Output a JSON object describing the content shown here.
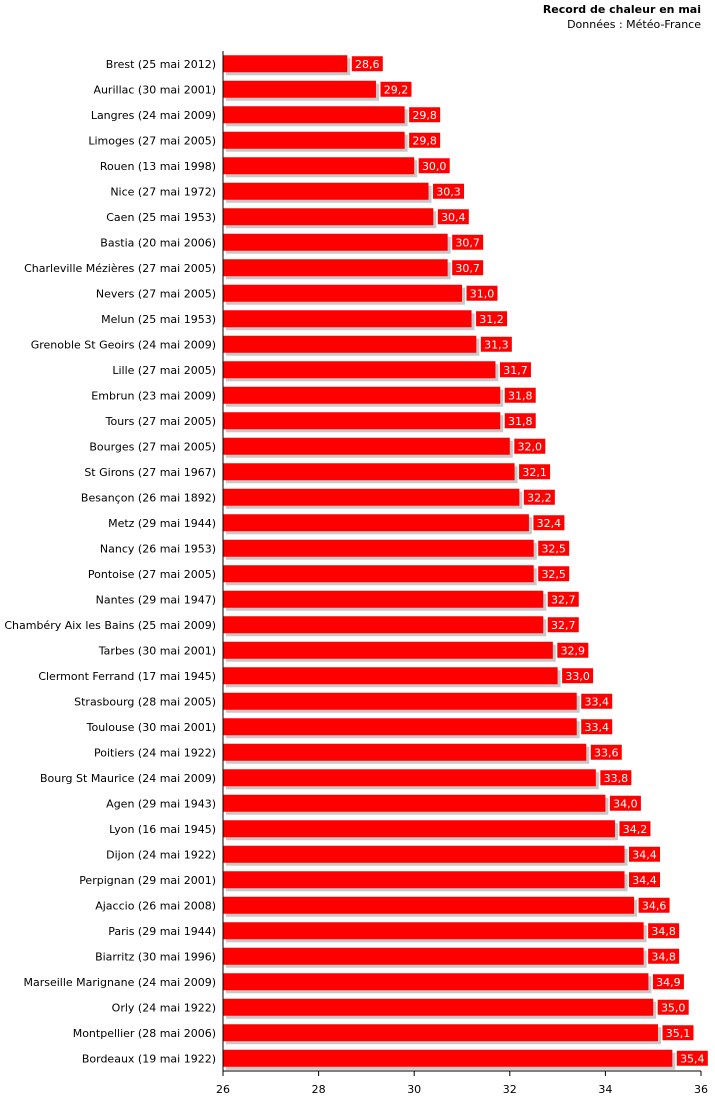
{
  "chart_data": {
    "type": "bar",
    "orientation": "horizontal",
    "title": "Record de chaleur en mai",
    "subtitle": "Données : Météo-France",
    "categories": [
      "Brest (25 mai 2012)",
      "Aurillac (30 mai 2001)",
      "Langres (24 mai 2009)",
      "Limoges (27 mai 2005)",
      "Rouen (13 mai 1998)",
      "Nice (27 mai 1972)",
      "Caen (25 mai 1953)",
      "Bastia (20 mai 2006)",
      "Charleville Mézières (27 mai 2005)",
      "Nevers (27 mai 2005)",
      "Melun (25 mai 1953)",
      "Grenoble St Geoirs (24 mai 2009)",
      "Lille (27 mai 2005)",
      "Embrun (23 mai 2009)",
      "Tours (27 mai 2005)",
      "Bourges (27 mai 2005)",
      "St Girons (27 mai 1967)",
      "Besançon (26 mai 1892)",
      "Metz (29 mai 1944)",
      "Nancy (26 mai 1953)",
      "Pontoise (27 mai 2005)",
      "Nantes (29 mai 1947)",
      "Chambéry Aix les Bains (25 mai 2009)",
      "Tarbes (30 mai 2001)",
      "Clermont Ferrand (17 mai 1945)",
      "Strasbourg (28 mai 2005)",
      "Toulouse (30 mai 2001)",
      "Poitiers (24 mai 1922)",
      "Bourg St Maurice (24 mai 2009)",
      "Agen (29 mai 1943)",
      "Lyon (16 mai 1945)",
      "Dijon (24 mai 1922)",
      "Perpignan (29 mai 2001)",
      "Ajaccio (26 mai 2008)",
      "Paris (29 mai 1944)",
      "Biarritz (30 mai 1996)",
      "Marseille Marignane (24 mai 2009)",
      "Orly (24 mai 1922)",
      "Montpellier (28 mai 2006)",
      "Bordeaux (19 mai 1922)"
    ],
    "values": [
      28.6,
      29.2,
      29.8,
      29.8,
      30.0,
      30.3,
      30.4,
      30.7,
      30.7,
      31.0,
      31.2,
      31.3,
      31.7,
      31.8,
      31.8,
      32.0,
      32.1,
      32.2,
      32.4,
      32.5,
      32.5,
      32.7,
      32.7,
      32.9,
      33.0,
      33.4,
      33.4,
      33.6,
      33.8,
      34.0,
      34.2,
      34.4,
      34.4,
      34.6,
      34.8,
      34.8,
      34.9,
      35.0,
      35.1,
      35.4
    ],
    "value_labels": [
      "28,6",
      "29,2",
      "29,8",
      "29,8",
      "30,0",
      "30,3",
      "30,4",
      "30,7",
      "30,7",
      "31,0",
      "31,2",
      "31,3",
      "31,7",
      "31,8",
      "31,8",
      "32,0",
      "32,1",
      "32,2",
      "32,4",
      "32,5",
      "32,5",
      "32,7",
      "32,7",
      "32,9",
      "33,0",
      "33,4",
      "33,4",
      "33,6",
      "33,8",
      "34,0",
      "34,2",
      "34,4",
      "34,4",
      "34,6",
      "34,8",
      "34,8",
      "34,9",
      "35,0",
      "35,1",
      "35,4"
    ],
    "xlim": [
      26,
      36
    ],
    "xticks": [
      26,
      28,
      30,
      32,
      34,
      36
    ],
    "xtick_labels": [
      "26",
      "28",
      "30",
      "32",
      "34",
      "36"
    ],
    "xlabel": "",
    "ylabel": "",
    "grid": false,
    "legend": "none",
    "colors": {
      "bar": "#ff0000",
      "bar_shadow": "#c8c8c8",
      "label_background": "#ff0000",
      "label_text": "#ffffff",
      "axis": "#000000"
    }
  }
}
